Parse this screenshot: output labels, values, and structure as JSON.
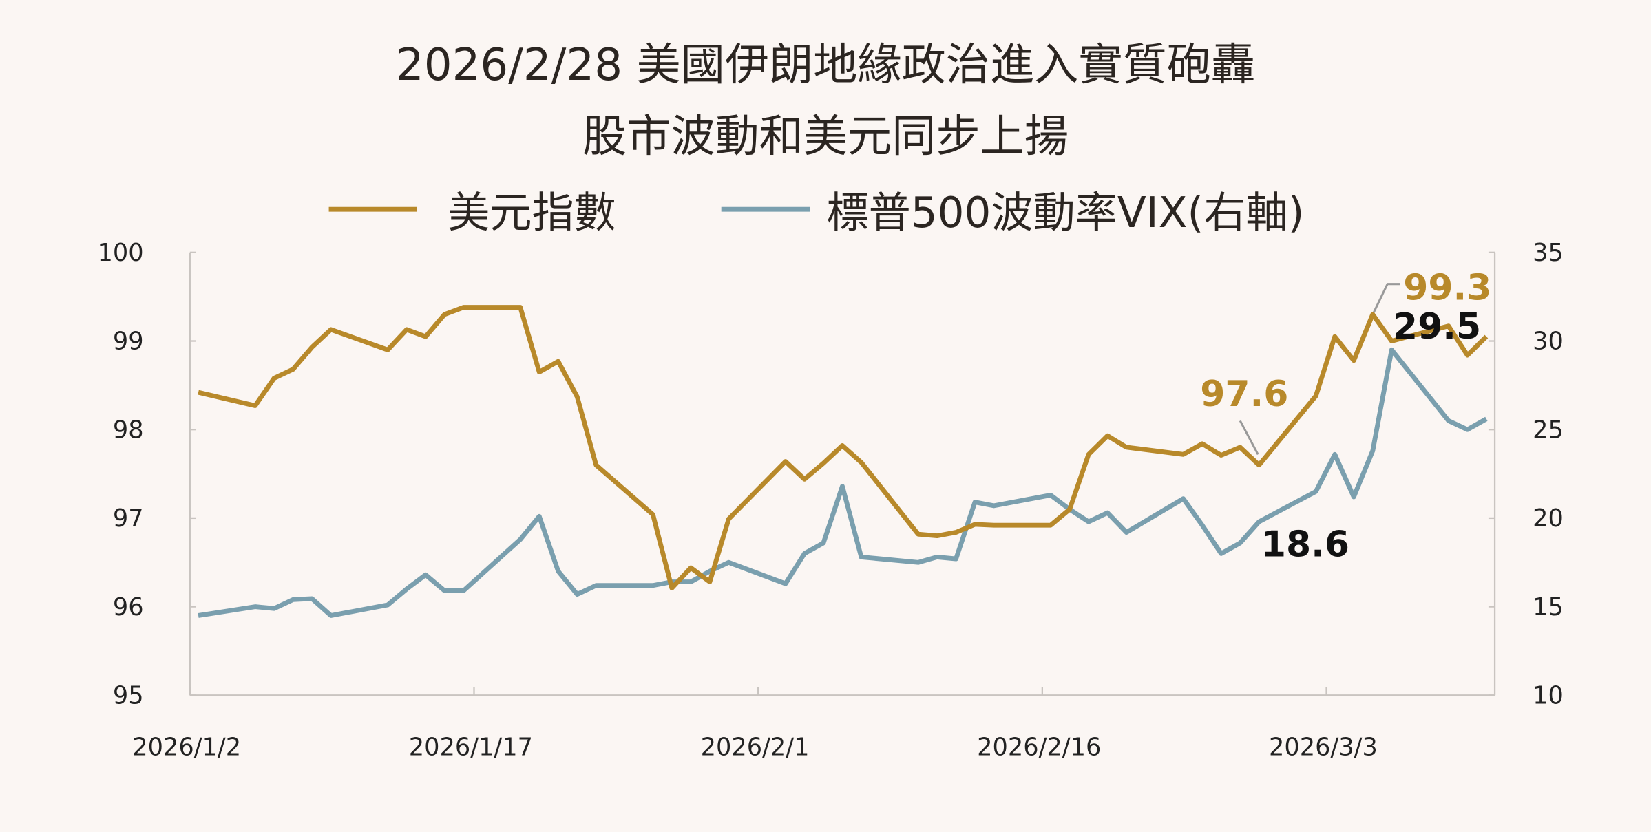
{
  "chart_data": {
    "type": "line",
    "title": "2026/2/28 美國伊朗地緣政治進入實質砲轟",
    "subtitle": "股市波動和美元同步上揚",
    "x": [
      "2026/1/2",
      "2026/1/5",
      "2026/1/6",
      "2026/1/7",
      "2026/1/8",
      "2026/1/9",
      "2026/1/12",
      "2026/1/13",
      "2026/1/14",
      "2026/1/15",
      "2026/1/16",
      "2026/1/19",
      "2026/1/20",
      "2026/1/21",
      "2026/1/22",
      "2026/1/23",
      "2026/1/26",
      "2026/1/27",
      "2026/1/28",
      "2026/1/29",
      "2026/1/30",
      "2026/2/2",
      "2026/2/3",
      "2026/2/4",
      "2026/2/5",
      "2026/2/6",
      "2026/2/9",
      "2026/2/10",
      "2026/2/11",
      "2026/2/12",
      "2026/2/13",
      "2026/2/16",
      "2026/2/17",
      "2026/2/18",
      "2026/2/19",
      "2026/2/20",
      "2026/2/23",
      "2026/2/24",
      "2026/2/25",
      "2026/2/26",
      "2026/2/27",
      "2026/3/2",
      "2026/3/3",
      "2026/3/4",
      "2026/3/5",
      "2026/3/6",
      "2026/3/9",
      "2026/3/10",
      "2026/3/11"
    ],
    "series": [
      {
        "name": "美元指數",
        "color": "#b8892a",
        "axis": "y",
        "values": [
          98.42,
          98.27,
          98.58,
          98.68,
          98.93,
          99.13,
          98.9,
          99.13,
          99.05,
          99.3,
          99.38,
          99.38,
          98.65,
          98.77,
          98.37,
          97.6,
          97.04,
          96.21,
          96.44,
          96.28,
          96.99,
          97.64,
          97.44,
          97.62,
          97.82,
          97.63,
          96.82,
          96.8,
          96.84,
          96.93,
          96.92,
          96.92,
          97.1,
          97.72,
          97.93,
          97.8,
          97.72,
          97.84,
          97.71,
          97.8,
          97.6,
          98.38,
          99.05,
          98.78,
          99.3,
          99.0,
          99.17,
          98.84,
          99.05
        ]
      },
      {
        "name": "標普500波動率VIX(右軸)",
        "color": "#7a9fae",
        "axis": "y2",
        "values": [
          14.5,
          15.0,
          14.9,
          15.4,
          15.45,
          14.5,
          15.1,
          16.0,
          16.8,
          15.9,
          15.9,
          18.8,
          20.1,
          17.0,
          15.7,
          16.2,
          16.2,
          16.4,
          16.4,
          17.0,
          17.5,
          16.3,
          18.0,
          18.6,
          21.8,
          17.8,
          17.5,
          17.8,
          17.7,
          20.9,
          20.7,
          21.3,
          20.5,
          19.8,
          20.3,
          19.2,
          21.1,
          19.6,
          18.0,
          18.6,
          19.8,
          21.5,
          23.6,
          21.2,
          23.8,
          29.5,
          25.5,
          25.0,
          25.6
        ]
      }
    ],
    "xlim": [
      "2026/1/2",
      "2026/3/11"
    ],
    "xticks": [
      "2026/1/2",
      "2026/1/17",
      "2026/2/1",
      "2026/2/16",
      "2026/3/3"
    ],
    "ylim": [
      95,
      100
    ],
    "yticks": [
      95,
      96,
      97,
      98,
      99,
      100
    ],
    "y2lim": [
      10,
      35
    ],
    "y2ticks": [
      10,
      15,
      20,
      25,
      30,
      35
    ],
    "grid": false,
    "annotations": [
      {
        "text": "97.6",
        "color": "#b8892a"
      },
      {
        "text": "99.3",
        "color": "#b8892a"
      },
      {
        "text": "29.5",
        "color": "#111111"
      },
      {
        "text": "18.6",
        "color": "#111111"
      }
    ]
  }
}
